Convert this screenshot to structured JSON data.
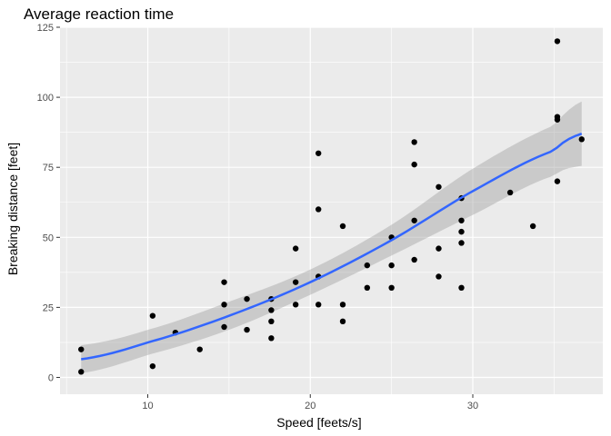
{
  "chart_data": {
    "type": "scatter",
    "title": "Average reaction time",
    "xlabel": "Speed [feets/s]",
    "ylabel": "Breaking distance [feet]",
    "xlim": [
      4.6,
      38.0
    ],
    "ylim": [
      -6,
      125
    ],
    "x_ticks": [
      10,
      20,
      30
    ],
    "y_ticks": [
      0,
      25,
      50,
      75,
      100,
      125
    ],
    "x_tick_labels": [
      "10",
      "20",
      "30"
    ],
    "y_tick_labels": [
      "0",
      "25",
      "50",
      "75",
      "100",
      "125"
    ],
    "grid": true,
    "points": [
      {
        "x": 5.9,
        "y": 2
      },
      {
        "x": 5.9,
        "y": 10
      },
      {
        "x": 10.3,
        "y": 4
      },
      {
        "x": 10.3,
        "y": 22
      },
      {
        "x": 11.7,
        "y": 16
      },
      {
        "x": 13.2,
        "y": 10
      },
      {
        "x": 14.7,
        "y": 18
      },
      {
        "x": 14.7,
        "y": 26
      },
      {
        "x": 14.7,
        "y": 34
      },
      {
        "x": 16.1,
        "y": 17
      },
      {
        "x": 16.1,
        "y": 28
      },
      {
        "x": 17.6,
        "y": 14
      },
      {
        "x": 17.6,
        "y": 20
      },
      {
        "x": 17.6,
        "y": 24
      },
      {
        "x": 17.6,
        "y": 28
      },
      {
        "x": 19.1,
        "y": 26
      },
      {
        "x": 19.1,
        "y": 34
      },
      {
        "x": 19.1,
        "y": 46
      },
      {
        "x": 20.5,
        "y": 26
      },
      {
        "x": 20.5,
        "y": 36
      },
      {
        "x": 20.5,
        "y": 60
      },
      {
        "x": 20.5,
        "y": 80
      },
      {
        "x": 22.0,
        "y": 20
      },
      {
        "x": 22.0,
        "y": 26
      },
      {
        "x": 22.0,
        "y": 54
      },
      {
        "x": 23.5,
        "y": 32
      },
      {
        "x": 23.5,
        "y": 40
      },
      {
        "x": 25.0,
        "y": 32
      },
      {
        "x": 25.0,
        "y": 40
      },
      {
        "x": 25.0,
        "y": 50
      },
      {
        "x": 26.4,
        "y": 42
      },
      {
        "x": 26.4,
        "y": 56
      },
      {
        "x": 26.4,
        "y": 76
      },
      {
        "x": 26.4,
        "y": 84
      },
      {
        "x": 27.9,
        "y": 36
      },
      {
        "x": 27.9,
        "y": 46
      },
      {
        "x": 27.9,
        "y": 68
      },
      {
        "x": 29.3,
        "y": 32
      },
      {
        "x": 29.3,
        "y": 48
      },
      {
        "x": 29.3,
        "y": 52
      },
      {
        "x": 29.3,
        "y": 56
      },
      {
        "x": 29.3,
        "y": 64
      },
      {
        "x": 32.3,
        "y": 66
      },
      {
        "x": 33.7,
        "y": 54
      },
      {
        "x": 35.2,
        "y": 70
      },
      {
        "x": 35.2,
        "y": 92
      },
      {
        "x": 35.2,
        "y": 93
      },
      {
        "x": 35.2,
        "y": 120
      },
      {
        "x": 36.7,
        "y": 85
      }
    ],
    "fit": {
      "method": "quadratic regression with confidence band",
      "line_color": "#3366FF",
      "band_color": "#999999",
      "x": [
        5.9,
        10,
        15,
        20,
        25,
        30,
        35,
        36.7
      ],
      "y": [
        6.5,
        12.5,
        22,
        34,
        49,
        66.5,
        81,
        87
      ],
      "lower": [
        1.5,
        8,
        17,
        29.5,
        43.5,
        58,
        72,
        75.5
      ],
      "upper": [
        11.5,
        17,
        27,
        38.5,
        54.5,
        74.5,
        90,
        98.5
      ]
    },
    "colors": {
      "panel_background": "#EBEBEB",
      "grid": "#FFFFFF",
      "point": "#000000"
    }
  }
}
